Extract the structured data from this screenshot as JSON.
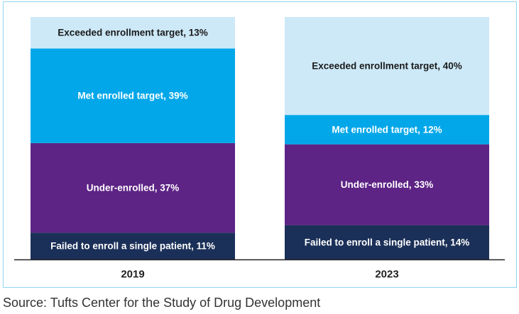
{
  "chart_data": {
    "type": "bar",
    "stacked": true,
    "normalized": true,
    "categories": [
      "2019",
      "2023"
    ],
    "series": [
      {
        "name": "Failed to enroll a single patient",
        "values": [
          11,
          14
        ],
        "color": "#1b3058",
        "text_color": "#ffffff"
      },
      {
        "name": "Under-enrolled",
        "values": [
          37,
          33
        ],
        "color": "#5d2385",
        "text_color": "#ffffff"
      },
      {
        "name": "Met enrolled target",
        "values": [
          39,
          12
        ],
        "color": "#02a7e9",
        "text_color": "#ffffff"
      },
      {
        "name": "Exceeded enrollment target",
        "values": [
          13,
          40
        ],
        "color": "#cde9f8",
        "text_color": "#1a1a1a"
      }
    ],
    "data_labels": [
      [
        "Failed to enroll a single patient, 11%",
        "Under-enrolled, 37%",
        "Met enrolled target, 39%",
        "Exceeded enrollment target, 13%"
      ],
      [
        "Failed to enroll a single patient, 14%",
        "Under-enrolled, 33%",
        "Met enrolled target, 12%",
        "Exceeded enrollment target, 40%"
      ]
    ],
    "unit": "%",
    "ylim": [
      0,
      100
    ],
    "title": "",
    "xlabel": "",
    "ylabel": ""
  },
  "source": "Source: Tufts Center for the Study of Drug Development",
  "colors": {
    "frame_border": "#8fd3f4",
    "baseline": "#222222"
  }
}
